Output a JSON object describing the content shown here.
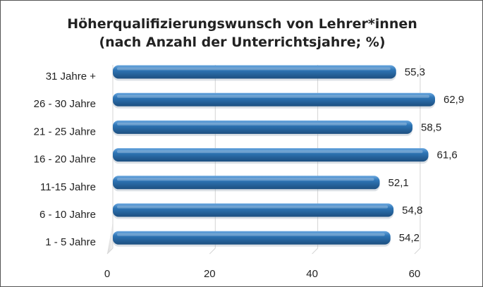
{
  "chart_data": {
    "type": "bar",
    "orientation": "horizontal",
    "title_lines": [
      "Höherqualifizierungswunsch von Lehrer*innen",
      "(nach Anzahl der Unterrichtsjahre; %)"
    ],
    "categories": [
      "31 Jahre +",
      "26 - 30 Jahre",
      "21 - 25 Jahre",
      "16 - 20 Jahre",
      "11-15 Jahre",
      "6 - 10 Jahre",
      "1 - 5 Jahre"
    ],
    "values": [
      55.3,
      62.9,
      58.5,
      61.6,
      52.1,
      54.8,
      54.2
    ],
    "value_labels": [
      "55,3",
      "62,9",
      "58,5",
      "61,6",
      "52,1",
      "54,8",
      "54,2"
    ],
    "xticks": [
      0,
      20,
      40,
      60
    ],
    "xlim": [
      0,
      62.9
    ],
    "bar_color": "#2E75B6",
    "grid": true,
    "legend": "none"
  }
}
